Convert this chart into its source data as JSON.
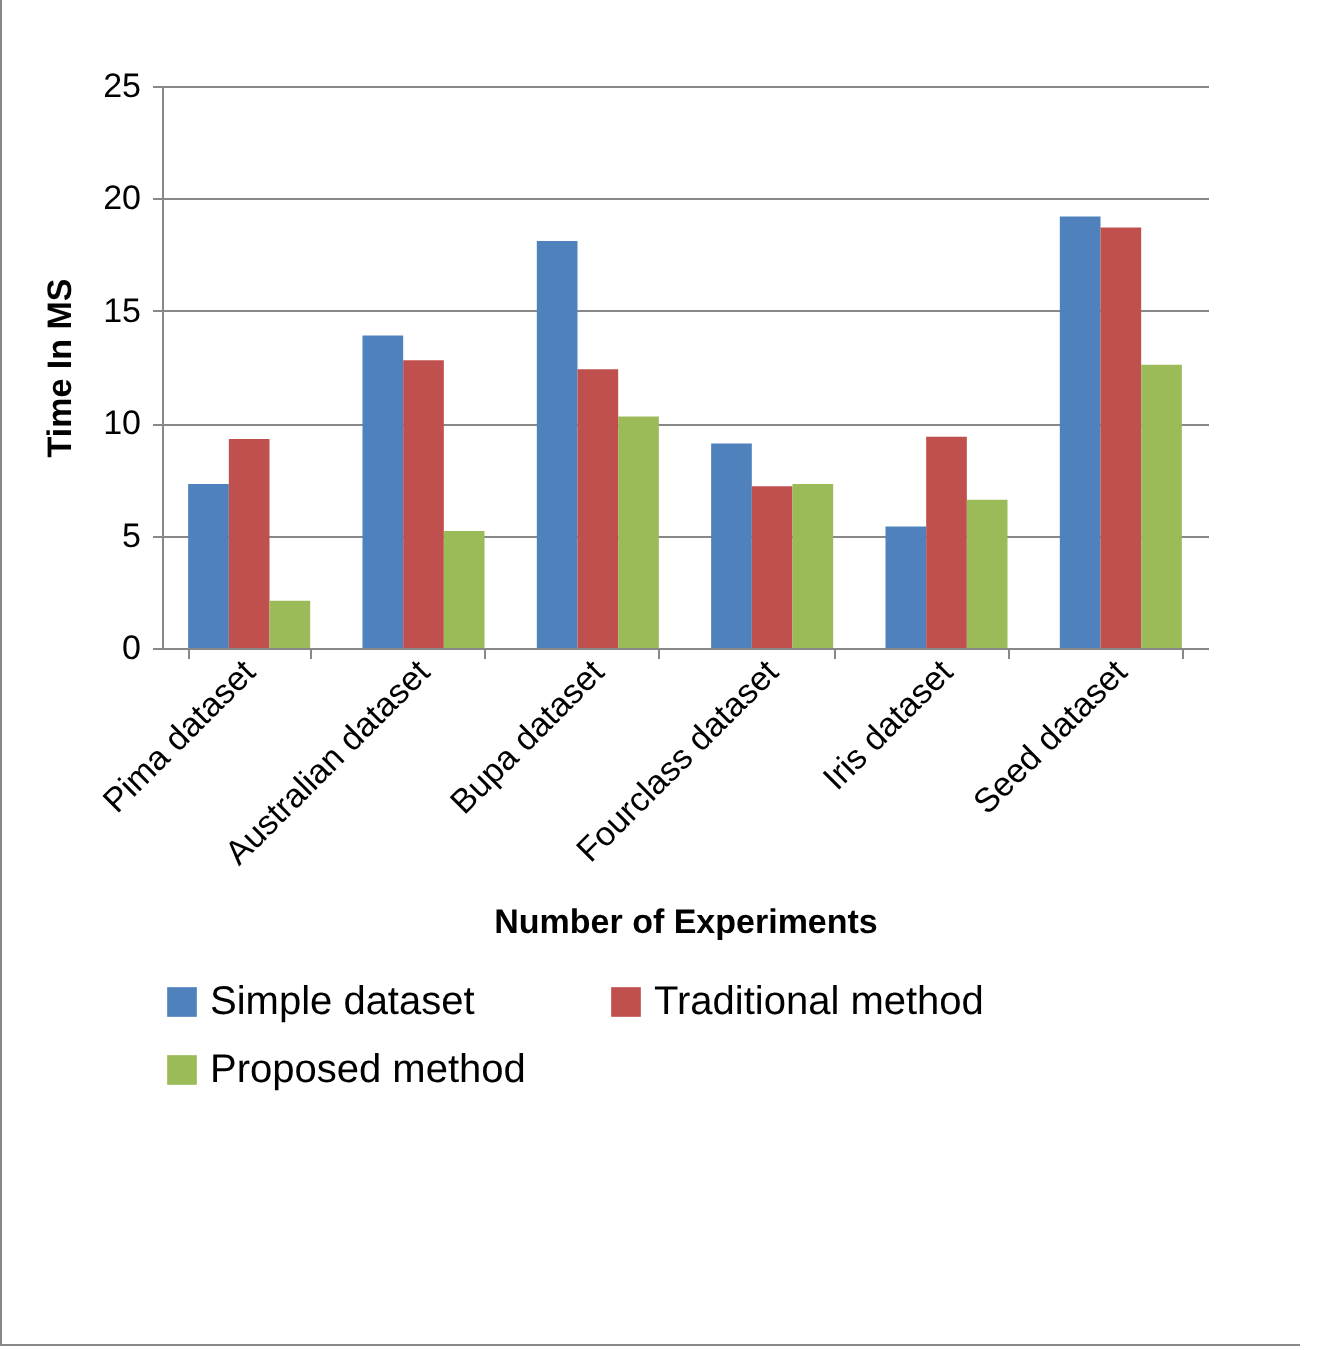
{
  "chart_data": {
    "type": "bar",
    "xlabel": "Number of Experiments",
    "ylabel": "Time In MS",
    "categories": [
      "Pima dataset",
      "Australian dataset",
      "Bupa dataset",
      "Fourclass dataset",
      "Iris dataset",
      "Seed dataset"
    ],
    "series": [
      {
        "name": "Simple dataset",
        "color": "#4f81bd",
        "values": [
          7.3,
          13.9,
          18.1,
          9.1,
          5.4,
          19.2
        ]
      },
      {
        "name": "Traditional method",
        "color": "#c0504d",
        "values": [
          9.3,
          12.8,
          12.4,
          7.2,
          9.4,
          18.7
        ]
      },
      {
        "name": "Proposed method",
        "color": "#9bbb59",
        "values": [
          2.1,
          5.2,
          10.3,
          7.3,
          6.6,
          12.6
        ]
      }
    ],
    "ylim": [
      0,
      25
    ],
    "yticks": [
      0,
      5,
      10,
      15,
      20,
      25
    ],
    "grid": "y",
    "legend": "bottom"
  }
}
